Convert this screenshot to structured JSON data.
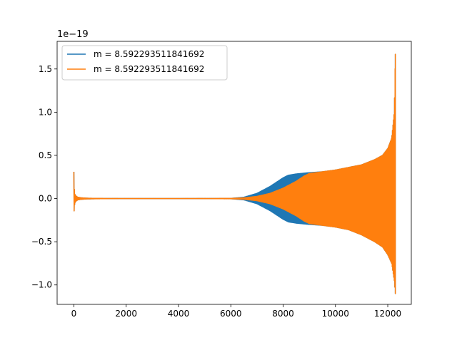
{
  "chart_data": {
    "type": "line",
    "title": "",
    "xlabel": "",
    "ylabel": "",
    "offset_label": "1e−19",
    "xlim": [
      -640,
      12900
    ],
    "ylim": [
      -1.225,
      1.82
    ],
    "xticks": [
      0,
      2000,
      4000,
      6000,
      8000,
      10000,
      12000
    ],
    "xtick_labels": [
      "0",
      "2000",
      "4000",
      "6000",
      "8000",
      "10000",
      "12000"
    ],
    "yticks": [
      -1.0,
      -0.5,
      0.0,
      0.5,
      1.0,
      1.5
    ],
    "ytick_labels": [
      "−1.0",
      "−0.5",
      "0.0",
      "0.5",
      "1.0",
      "1.5"
    ],
    "grid": false,
    "legend_position": "upper-left",
    "series": [
      {
        "name": "m = 8.592293511841692",
        "color": "#1f77b4",
        "style": "oscillating-envelope",
        "envelope_x": [
          0,
          15,
          40,
          80,
          150,
          300,
          500,
          800,
          2000,
          4000,
          6000,
          6500,
          7000,
          7500,
          7800,
          8000,
          8200,
          8500,
          9000,
          9500,
          10000,
          10500,
          11000,
          11500,
          11800,
          12000,
          12150,
          12250,
          12290
        ],
        "envelope_upper": [
          0.31,
          0.12,
          0.05,
          0.03,
          0.015,
          0.008,
          0.004,
          0.002,
          0.0005,
          0.0003,
          0.002,
          0.015,
          0.06,
          0.14,
          0.2,
          0.24,
          0.27,
          0.285,
          0.3,
          0.31,
          0.33,
          0.36,
          0.39,
          0.45,
          0.5,
          0.58,
          0.7,
          1.0,
          1.67
        ],
        "envelope_lower": [
          -0.23,
          -0.1,
          -0.05,
          -0.03,
          -0.015,
          -0.008,
          -0.004,
          -0.002,
          -0.0005,
          -0.0003,
          -0.002,
          -0.015,
          -0.06,
          -0.14,
          -0.2,
          -0.24,
          -0.27,
          -0.285,
          -0.3,
          -0.31,
          -0.33,
          -0.36,
          -0.42,
          -0.5,
          -0.56,
          -0.65,
          -0.75,
          -0.95,
          -1.1
        ]
      },
      {
        "name": "m = 8.592293511841692",
        "color": "#ff7f0e",
        "style": "oscillating-envelope",
        "envelope_x": [
          0,
          15,
          40,
          80,
          150,
          300,
          500,
          800,
          2000,
          4000,
          6000,
          6500,
          7000,
          7500,
          8000,
          8500,
          8800,
          9000,
          9500,
          10000,
          10500,
          11000,
          11500,
          11800,
          12000,
          12150,
          12250,
          12290
        ],
        "envelope_upper": [
          0.31,
          0.12,
          0.05,
          0.03,
          0.015,
          0.008,
          0.004,
          0.002,
          0.0005,
          0.0003,
          0.002,
          0.008,
          0.025,
          0.06,
          0.12,
          0.2,
          0.26,
          0.29,
          0.31,
          0.33,
          0.36,
          0.39,
          0.45,
          0.5,
          0.58,
          0.7,
          1.0,
          1.67
        ],
        "envelope_lower": [
          -0.23,
          -0.1,
          -0.05,
          -0.03,
          -0.015,
          -0.008,
          -0.004,
          -0.002,
          -0.0005,
          -0.0003,
          -0.002,
          -0.008,
          -0.025,
          -0.06,
          -0.12,
          -0.2,
          -0.26,
          -0.29,
          -0.31,
          -0.33,
          -0.36,
          -0.42,
          -0.5,
          -0.56,
          -0.65,
          -0.75,
          -0.95,
          -1.1
        ]
      }
    ]
  }
}
